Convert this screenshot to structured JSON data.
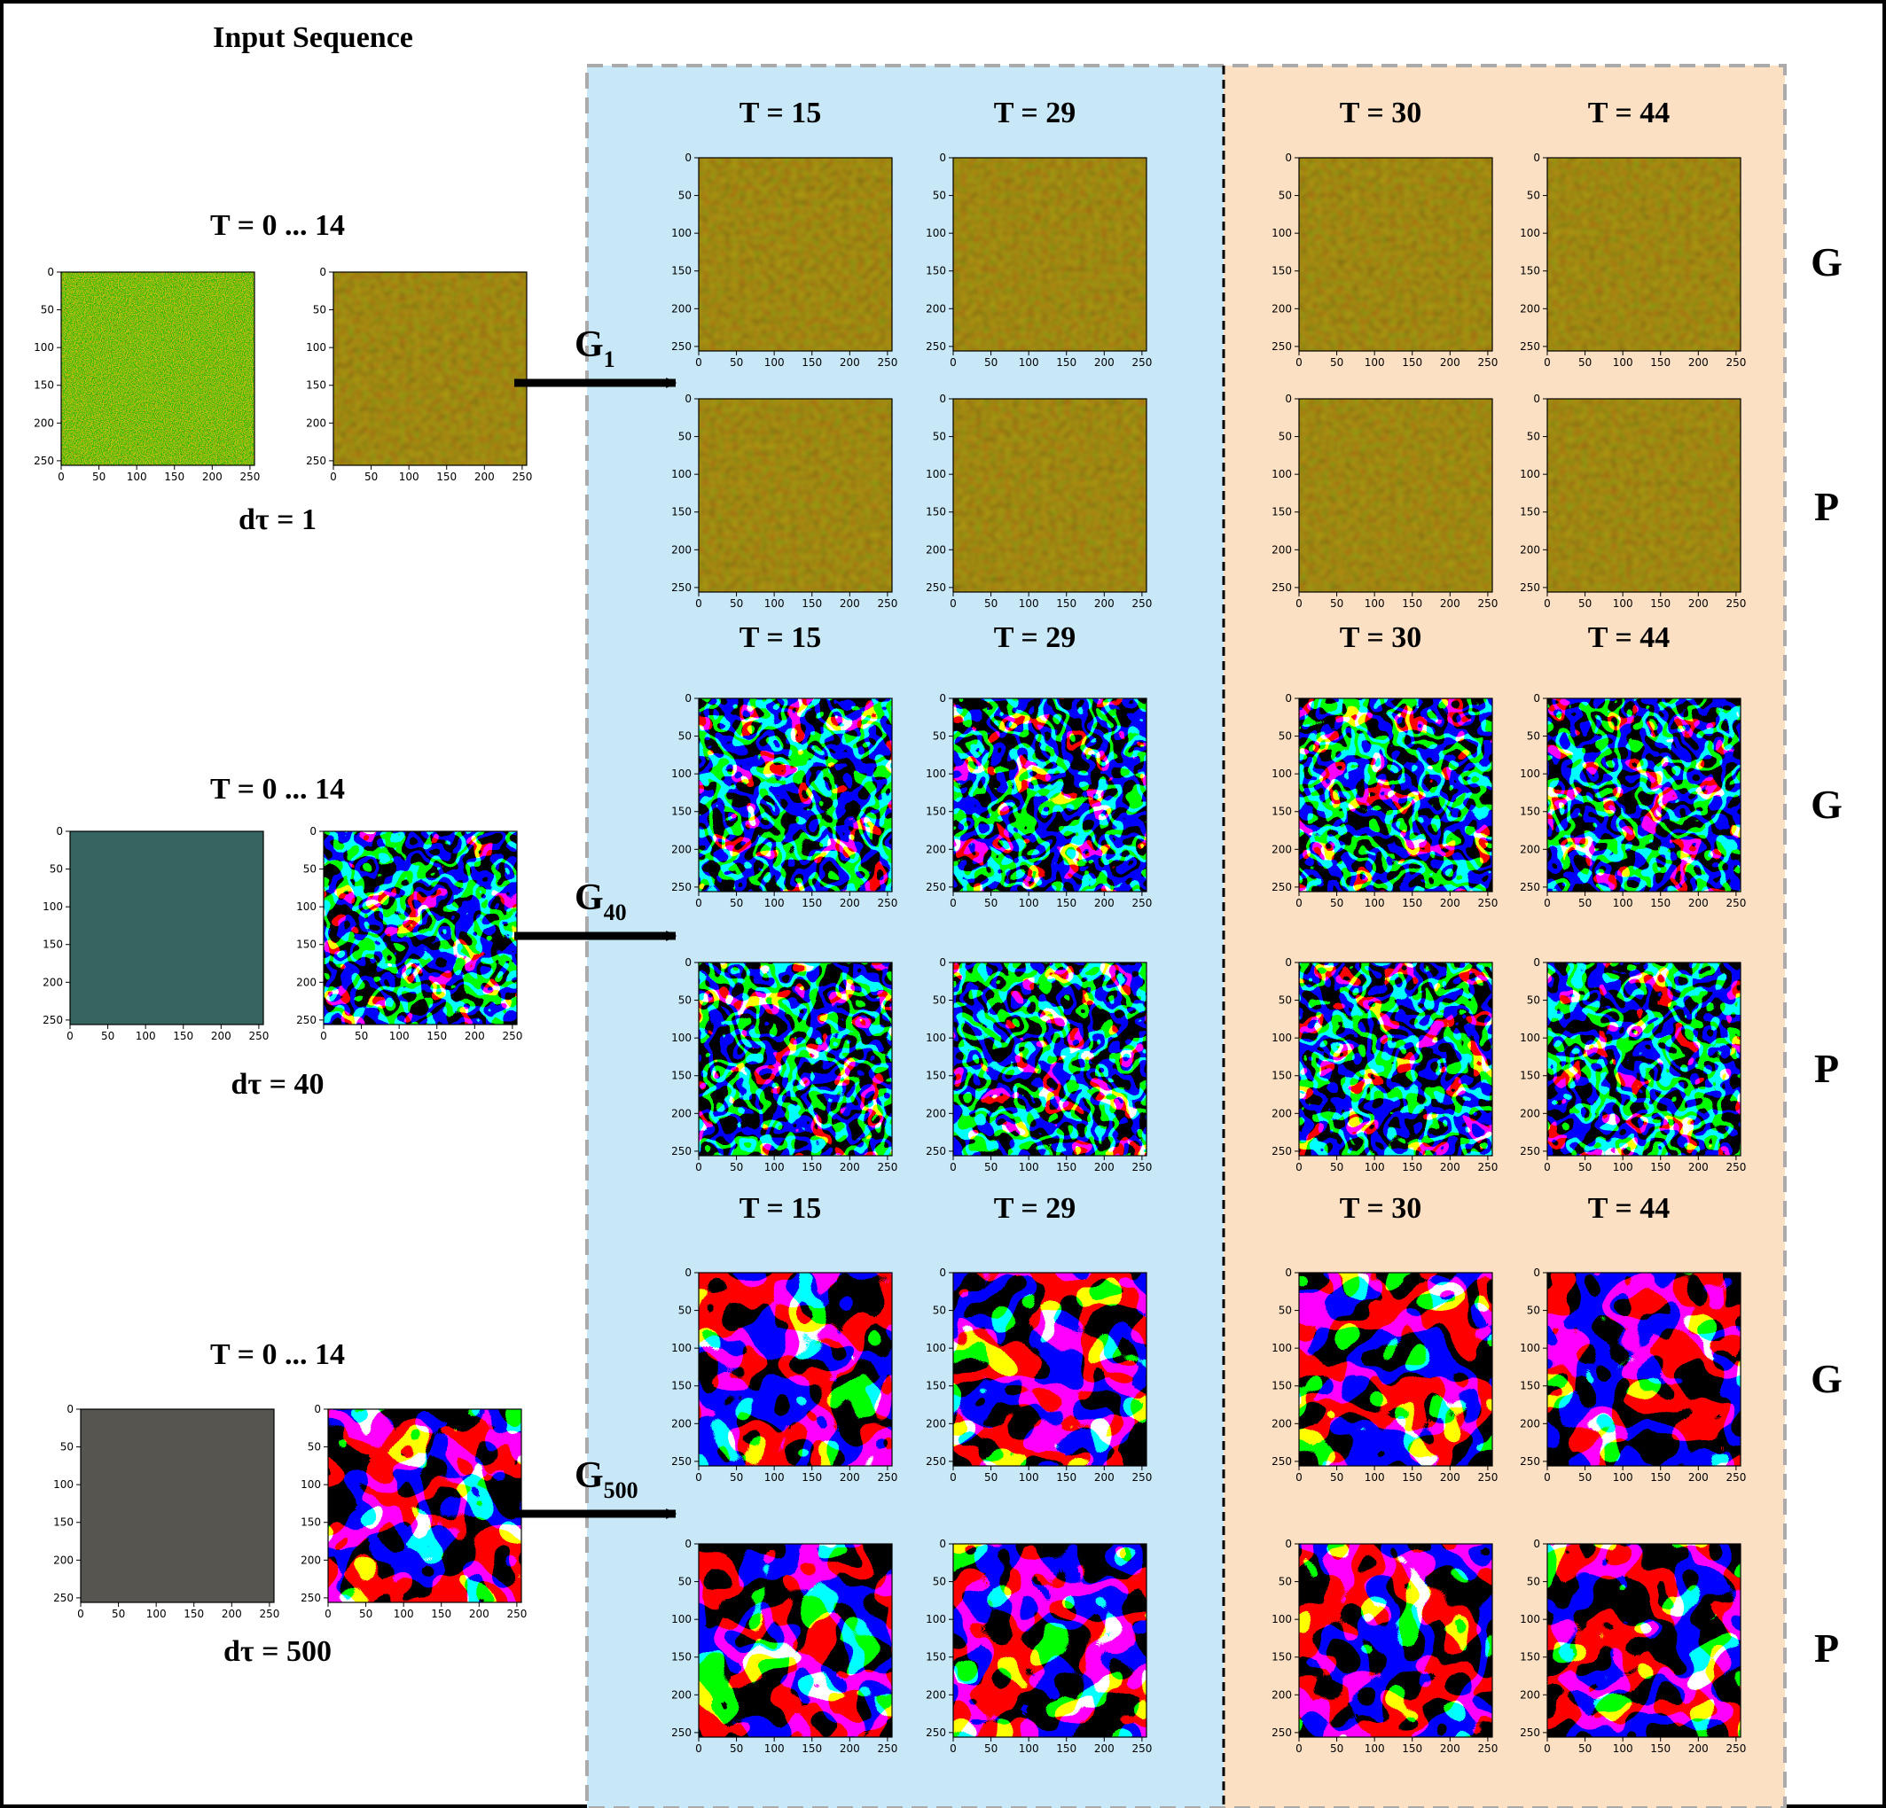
{
  "title": "Input Sequence",
  "colors": {
    "blue_panel": "#c8e8f8",
    "orange_panel": "#fbe0c4",
    "brown_field": "#7a6b1e",
    "teal_field": "#356461",
    "gray_field": "#575550",
    "pattern_red": "#ff0000",
    "pattern_green": "#00ff00",
    "pattern_blue": "#0000ff"
  },
  "tick_labels": [
    "0",
    "50",
    "100",
    "150",
    "200",
    "250"
  ],
  "row_labels": {
    "generated": "G",
    "predicted": "P"
  },
  "groups": [
    {
      "input_label": "T = 0 ... 14",
      "dt_label": "dτ = 1",
      "operator": "G",
      "operator_sub": "1",
      "pattern": "noise",
      "columns": [
        "T = 15",
        "T = 29",
        "T = 30",
        "T = 44"
      ]
    },
    {
      "input_label": "T = 0 ... 14",
      "dt_label": "dτ = 40",
      "operator": "G",
      "operator_sub": "40",
      "pattern": "stripes",
      "columns": [
        "T = 15",
        "T = 29",
        "T = 30",
        "T = 44"
      ]
    },
    {
      "input_label": "T = 0 ... 14",
      "dt_label": "dτ = 500",
      "operator": "G",
      "operator_sub": "500",
      "pattern": "domains",
      "columns": [
        "T = 15",
        "T = 29",
        "T = 30",
        "T = 44"
      ]
    }
  ]
}
